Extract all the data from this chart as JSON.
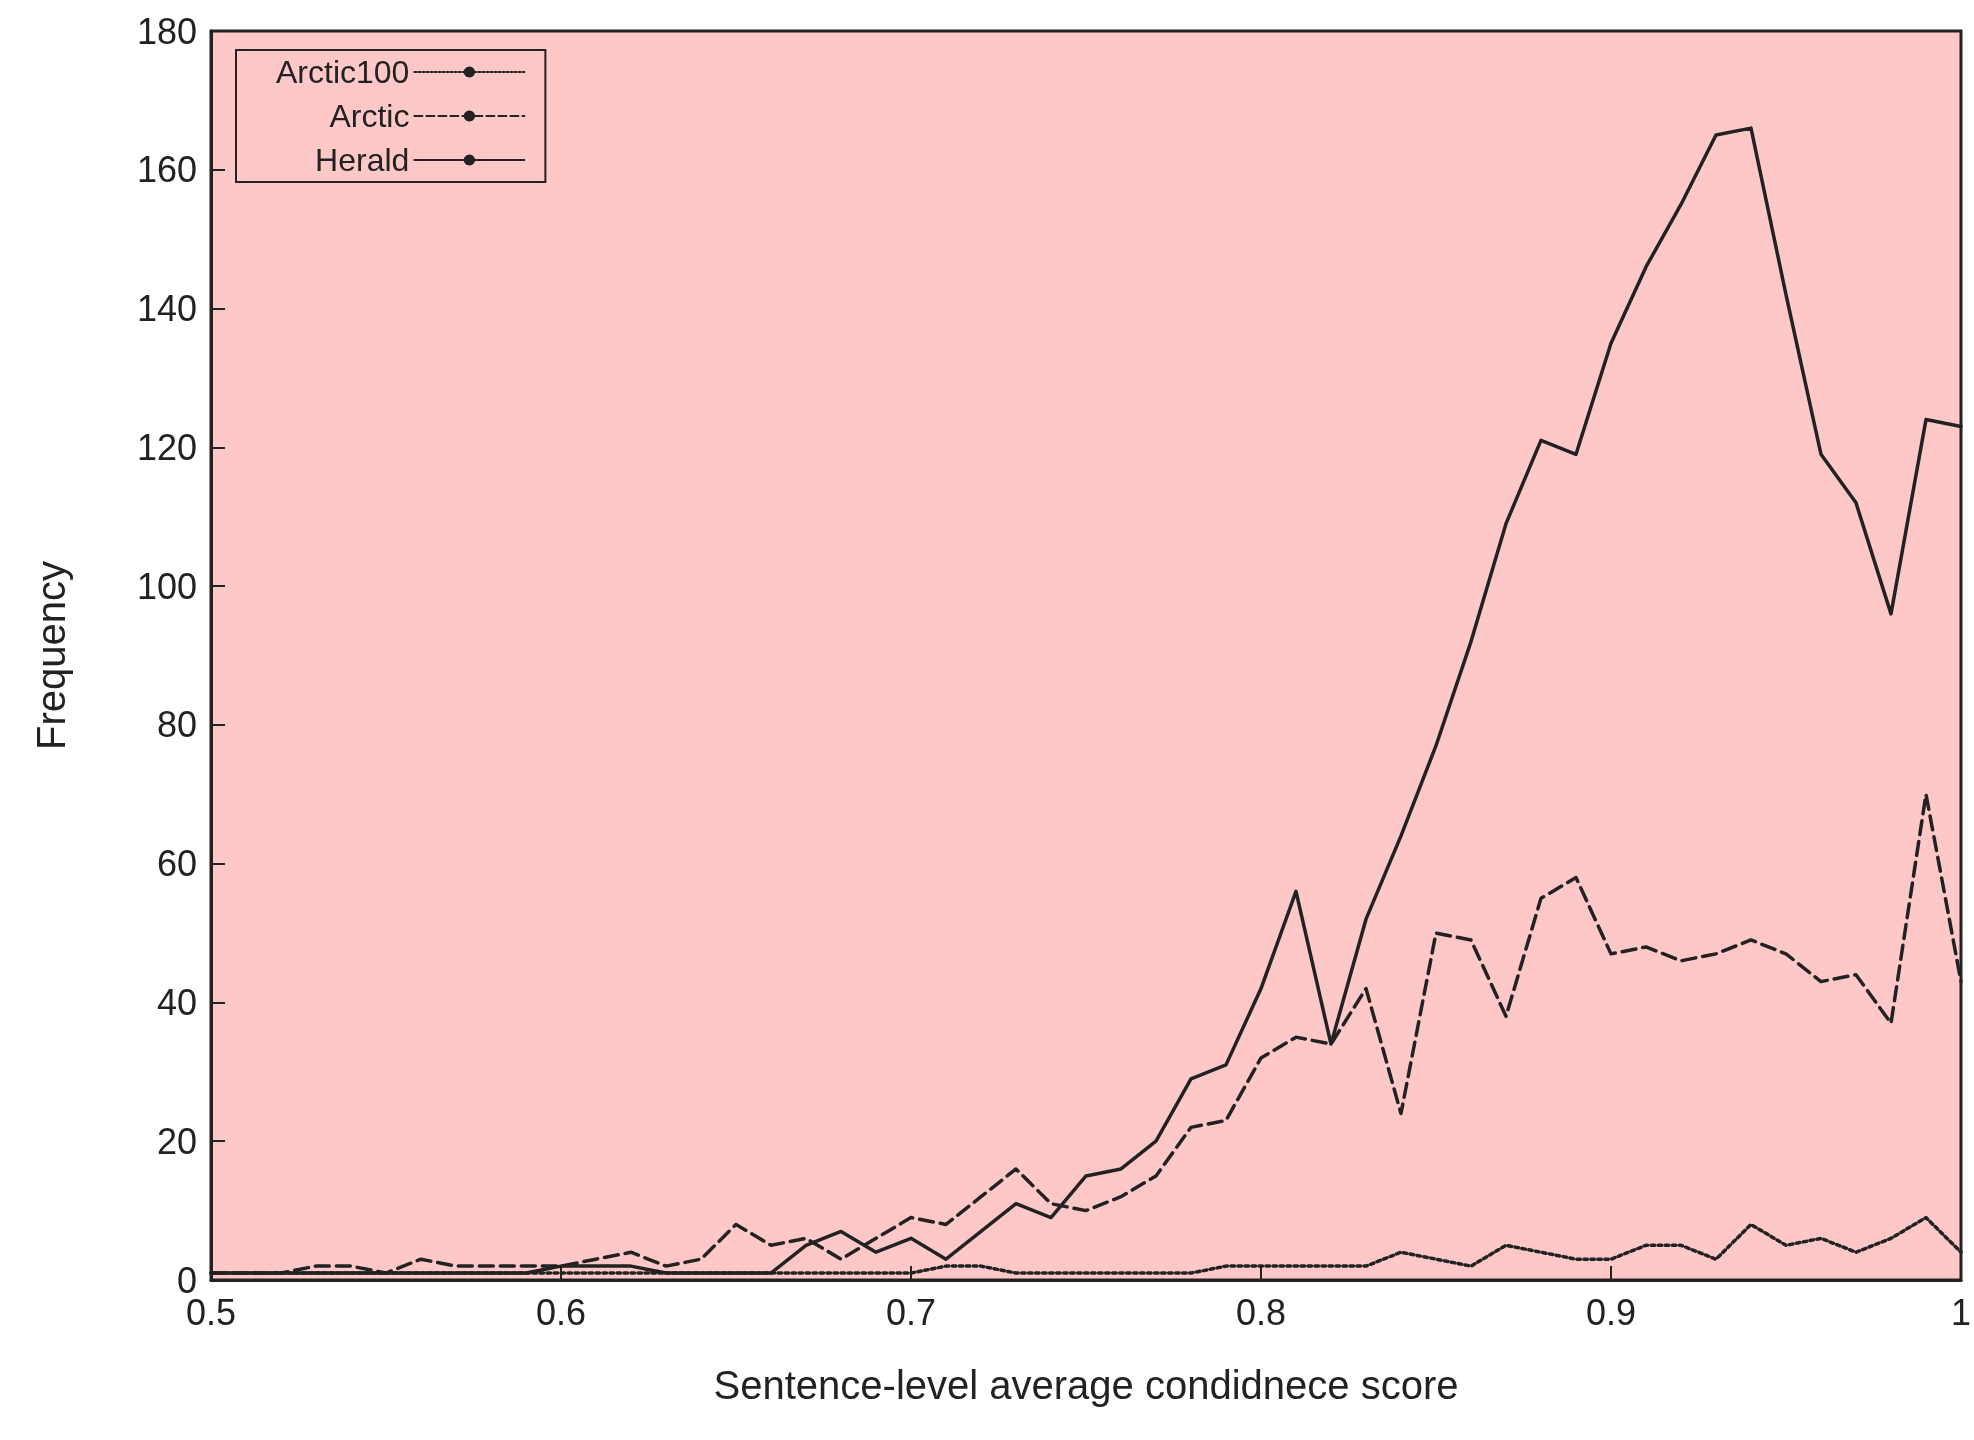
{
  "chart_data": {
    "type": "line",
    "xlabel": "Sentence-level average condidnece score",
    "ylabel": "Frequency",
    "x": [
      0.5,
      0.51,
      0.52,
      0.53,
      0.54,
      0.55,
      0.56,
      0.57,
      0.58,
      0.59,
      0.6,
      0.61,
      0.62,
      0.63,
      0.64,
      0.65,
      0.66,
      0.67,
      0.68,
      0.69,
      0.7,
      0.71,
      0.72,
      0.73,
      0.74,
      0.75,
      0.76,
      0.77,
      0.78,
      0.79,
      0.8,
      0.81,
      0.82,
      0.83,
      0.84,
      0.85,
      0.86,
      0.87,
      0.88,
      0.89,
      0.9,
      0.91,
      0.92,
      0.93,
      0.94,
      0.95,
      0.96,
      0.97,
      0.98,
      0.99,
      1.0
    ],
    "series": [
      {
        "name": "Arctic100",
        "color": "#222222",
        "line_style": "dotted",
        "values": [
          1,
          1,
          1,
          1,
          1,
          1,
          1,
          1,
          1,
          1,
          1,
          1,
          1,
          1,
          1,
          1,
          1,
          1,
          1,
          1,
          1,
          2,
          2,
          1,
          1,
          1,
          1,
          1,
          1,
          2,
          2,
          2,
          2,
          2,
          4,
          3,
          2,
          5,
          4,
          3,
          3,
          5,
          5,
          3,
          8,
          5,
          6,
          4,
          6,
          9,
          4
        ]
      },
      {
        "name": "Arctic",
        "color": "#222222",
        "line_style": "dashed",
        "values": [
          1,
          1,
          1,
          2,
          2,
          1,
          3,
          2,
          2,
          2,
          2,
          3,
          4,
          2,
          3,
          8,
          5,
          6,
          3,
          6,
          9,
          8,
          12,
          16,
          11,
          10,
          12,
          15,
          22,
          23,
          32,
          35,
          34,
          42,
          24,
          50,
          49,
          38,
          55,
          58,
          47,
          48,
          46,
          47,
          49,
          47,
          43,
          44,
          37,
          70,
          43
        ]
      },
      {
        "name": "Herald",
        "color": "#222222",
        "line_style": "solid",
        "values": [
          1,
          1,
          1,
          1,
          1,
          1,
          1,
          1,
          1,
          1,
          2,
          2,
          2,
          1,
          1,
          1,
          1,
          5,
          7,
          4,
          6,
          3,
          7,
          11,
          9,
          15,
          16,
          20,
          29,
          31,
          42,
          56,
          34,
          52,
          64,
          77,
          92,
          109,
          121,
          119,
          135,
          146,
          155,
          165,
          166,
          142,
          119,
          112,
          96,
          124,
          123
        ]
      }
    ],
    "xlim": [
      0.5,
      1
    ],
    "xticks": [
      0.5,
      0.6,
      0.7,
      0.8,
      0.9,
      {
        "value": 1,
        "label": "1"
      }
    ],
    "ylim": [
      0,
      180
    ],
    "yticks": [
      0,
      20,
      40,
      60,
      80,
      100,
      120,
      140,
      160,
      180
    ],
    "marker": "none",
    "grid": false,
    "legend": "top left"
  }
}
